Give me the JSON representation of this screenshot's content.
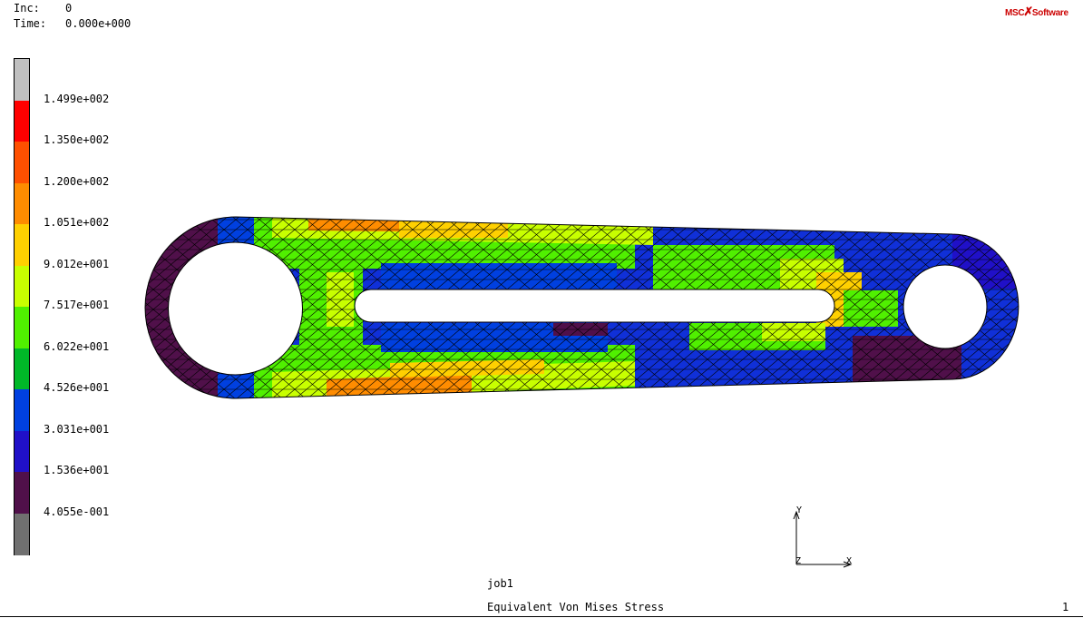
{
  "header": {
    "inc_label": "Inc:",
    "inc_value": "0",
    "time_label": "Time:",
    "time_value": "0.000e+000"
  },
  "logo": {
    "left": "MSC",
    "right": "Software"
  },
  "legend": {
    "colors": [
      "#c0c0c0",
      "#ff0000",
      "#ff5000",
      "#ff8c00",
      "#ffd000",
      "#c8ff00",
      "#50f000",
      "#00b828",
      "#0040e0",
      "#2010c8",
      "#50104a",
      "#707070"
    ],
    "labels": [
      "1.499e+002",
      "1.350e+002",
      "1.200e+002",
      "1.051e+002",
      "9.012e+001",
      "7.517e+001",
      "6.022e+001",
      "4.526e+001",
      "3.031e+001",
      "1.536e+001",
      "4.055e-001"
    ]
  },
  "footer": {
    "job_name": "job1",
    "plot_title": "Equivalent Von Mises Stress",
    "page_number": "1"
  },
  "triad": {
    "x_label": "X",
    "y_label": "Y",
    "z_label": "Z"
  }
}
